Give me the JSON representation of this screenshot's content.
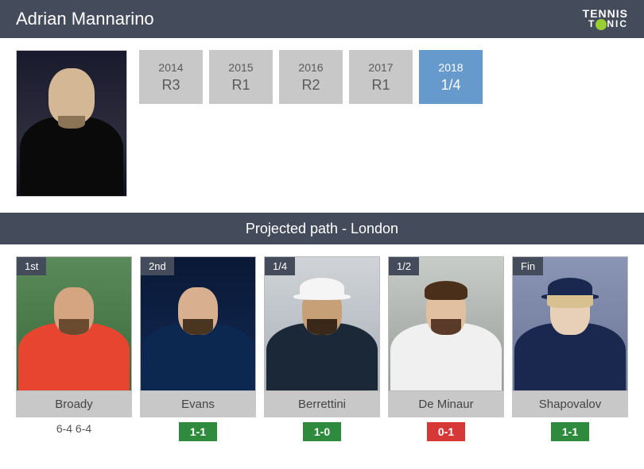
{
  "header": {
    "title": "Adrian Mannarino",
    "logo_top": "TENNIS",
    "logo_bot": "T NIC"
  },
  "player": {
    "photo_bg": "#1a1a2e",
    "skin": "#d4b896",
    "beard": "#8b7355",
    "shirt": "#0a0a0a"
  },
  "years": [
    {
      "year": "2014",
      "result": "R3",
      "active": false
    },
    {
      "year": "2015",
      "result": "R1",
      "active": false
    },
    {
      "year": "2016",
      "result": "R2",
      "active": false
    },
    {
      "year": "2017",
      "result": "R1",
      "active": false
    },
    {
      "year": "2018",
      "result": "1/4",
      "active": true
    }
  ],
  "section_title": "Projected path - London",
  "colors": {
    "header_bg": "#444c5c",
    "gray_box": "#c8c8c8",
    "blue_box": "#6699cc",
    "green": "#2e8b3e",
    "red": "#d63838"
  },
  "path": [
    {
      "round": "1st",
      "name": "Broady",
      "stat": "6-4 6-4",
      "stat_type": "none",
      "bg": "bg1",
      "skin": "#d4a580",
      "beard": "#6b4a30",
      "shirt": "#e84530",
      "has_cap": false
    },
    {
      "round": "2nd",
      "name": "Evans",
      "stat": "1-1",
      "stat_type": "green",
      "bg": "bg2",
      "skin": "#d8b090",
      "beard": "#4a3520",
      "shirt": "#0d2850",
      "has_cap": false
    },
    {
      "round": "1/4",
      "name": "Berrettini",
      "stat": "1-0",
      "stat_type": "green",
      "bg": "bg3",
      "skin": "#c8a078",
      "beard": "#3a2818",
      "shirt": "#1a2838",
      "has_cap": true,
      "cap": "#f5f5f5"
    },
    {
      "round": "1/2",
      "name": "De Minaur",
      "stat": "0-1",
      "stat_type": "red",
      "bg": "bg4",
      "skin": "#e0c0a0",
      "beard": "#5a3a28",
      "shirt": "#f0f0f0",
      "has_cap": false,
      "hair": "#4a2f1a"
    },
    {
      "round": "Fin",
      "name": "Shapovalov",
      "stat": "1-1",
      "stat_type": "green",
      "bg": "bg5",
      "skin": "#e8d0b8",
      "shirt": "#1a2850",
      "has_cap": true,
      "cap": "#1a2850",
      "hair_side": "#d8c090"
    }
  ]
}
